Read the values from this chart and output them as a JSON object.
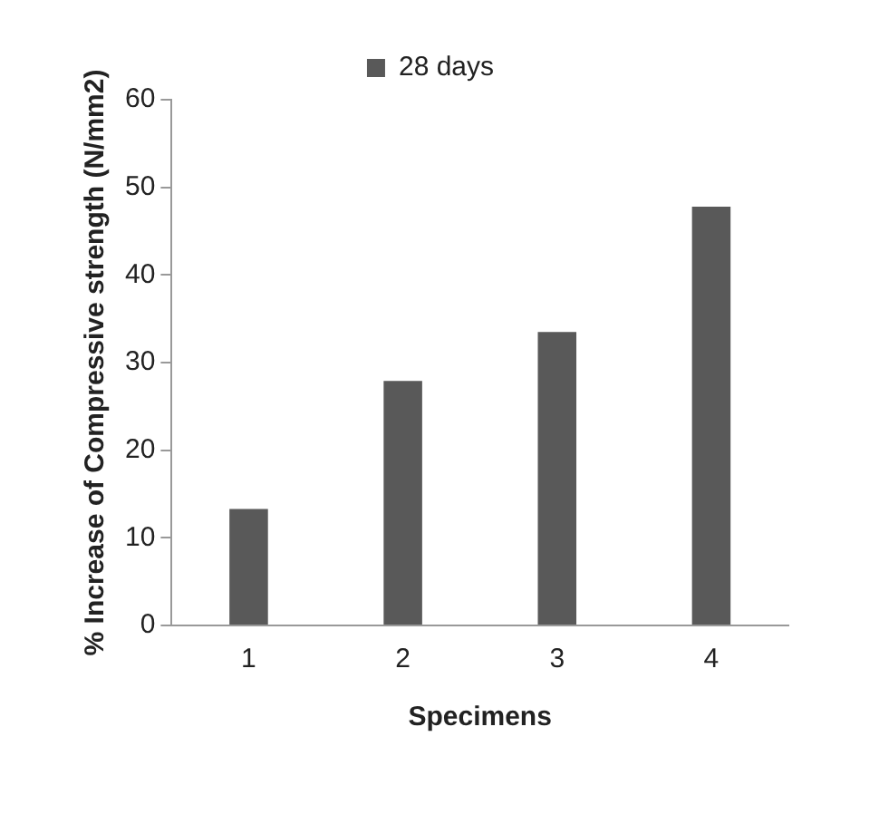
{
  "chart_data": {
    "type": "bar",
    "xlabel": "Specimens",
    "ylabel": "% Increase of Compressive strength (N/mm2)",
    "categories": [
      "1",
      "2",
      "3",
      "4"
    ],
    "series": [
      {
        "name": "28 days",
        "color": "#595959",
        "values": [
          13.3,
          27.9,
          33.5,
          47.8
        ]
      }
    ],
    "ylim": [
      0,
      60
    ],
    "yticks": [
      0,
      10,
      20,
      30,
      40,
      50,
      60
    ],
    "grid": false,
    "legend": "top"
  }
}
